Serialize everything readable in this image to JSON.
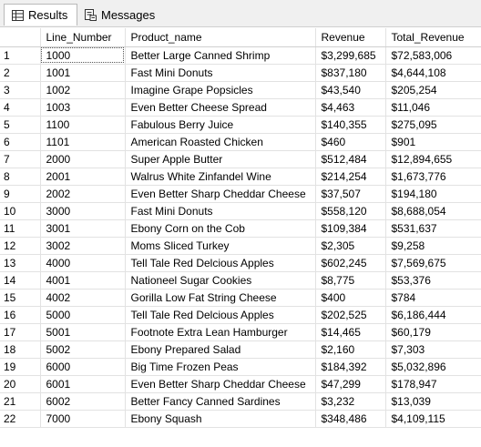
{
  "tabs": [
    {
      "label": "Results",
      "icon": "grid-icon",
      "active": true
    },
    {
      "label": "Messages",
      "icon": "messages-icon",
      "active": false
    }
  ],
  "grid": {
    "columns": [
      "",
      "Line_Number",
      "Product_name",
      "Revenue",
      "Total_Revenue"
    ],
    "rows": [
      [
        "1",
        "1000",
        "Better Large Canned Shrimp",
        "$3,299,685",
        "$72,583,006"
      ],
      [
        "2",
        "1001",
        "Fast Mini Donuts",
        "$837,180",
        "$4,644,108"
      ],
      [
        "3",
        "1002",
        "Imagine Grape Popsicles",
        "$43,540",
        "$205,254"
      ],
      [
        "4",
        "1003",
        "Even Better Cheese Spread",
        "$4,463",
        "$11,046"
      ],
      [
        "5",
        "1100",
        "Fabulous Berry Juice",
        "$140,355",
        "$275,095"
      ],
      [
        "6",
        "1101",
        "American Roasted Chicken",
        "$460",
        "$901"
      ],
      [
        "7",
        "2000",
        "Super Apple Butter",
        "$512,484",
        "$12,894,655"
      ],
      [
        "8",
        "2001",
        "Walrus White Zinfandel Wine",
        "$214,254",
        "$1,673,776"
      ],
      [
        "9",
        "2002",
        "Even Better Sharp Cheddar Cheese",
        "$37,507",
        "$194,180"
      ],
      [
        "10",
        "3000",
        "Fast Mini Donuts",
        "$558,120",
        "$8,688,054"
      ],
      [
        "11",
        "3001",
        "Ebony Corn on the Cob",
        "$109,384",
        "$531,637"
      ],
      [
        "12",
        "3002",
        "Moms Sliced Turkey",
        "$2,305",
        "$9,258"
      ],
      [
        "13",
        "4000",
        "Tell Tale Red Delcious Apples",
        "$602,245",
        "$7,569,675"
      ],
      [
        "14",
        "4001",
        "Nationeel Sugar Cookies",
        "$8,775",
        "$53,376"
      ],
      [
        "15",
        "4002",
        "Gorilla Low Fat String Cheese",
        "$400",
        "$784"
      ],
      [
        "16",
        "5000",
        "Tell Tale Red Delcious Apples",
        "$202,525",
        "$6,186,444"
      ],
      [
        "17",
        "5001",
        "Footnote Extra Lean Hamburger",
        "$14,465",
        "$60,179"
      ],
      [
        "18",
        "5002",
        "Ebony Prepared Salad",
        "$2,160",
        "$7,303"
      ],
      [
        "19",
        "6000",
        "Big Time Frozen Peas",
        "$184,392",
        "$5,032,896"
      ],
      [
        "20",
        "6001",
        "Even Better Sharp Cheddar Cheese",
        "$47,299",
        "$178,947"
      ],
      [
        "21",
        "6002",
        "Better Fancy Canned Sardines",
        "$3,232",
        "$13,039"
      ],
      [
        "22",
        "7000",
        "Ebony Squash",
        "$348,486",
        "$4,109,115"
      ]
    ]
  },
  "colors": {
    "selection_outline": "#555555",
    "grid_line": "#e2e2e2",
    "tabbar_bg": "#f0f0f0"
  }
}
